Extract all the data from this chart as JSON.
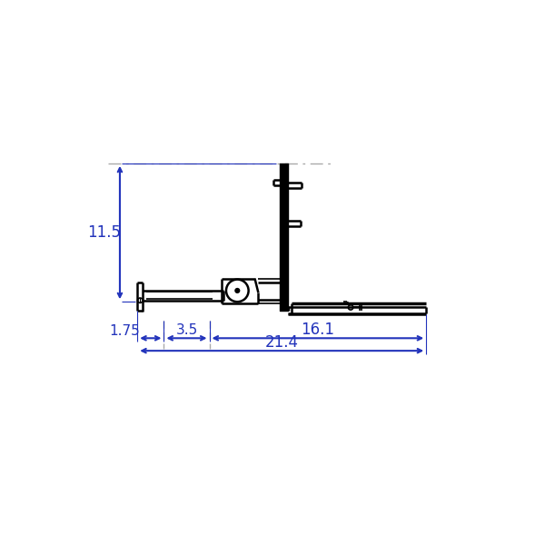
{
  "bg_color": "#ffffff",
  "line_color": "#000000",
  "dim_color": "#2233bb",
  "lw_thick": 2.5,
  "lw_med": 1.8,
  "lw_thin": 1.2,
  "lw_dim": 1.5,
  "font_size": 12,
  "font_size_sm": 11,
  "annotations": {
    "dim_11_5": "11.5",
    "dim_1_75": "1.75",
    "dim_3_5": "3.5",
    "dim_16_1": "16.1",
    "dim_21_4": "21.4"
  }
}
